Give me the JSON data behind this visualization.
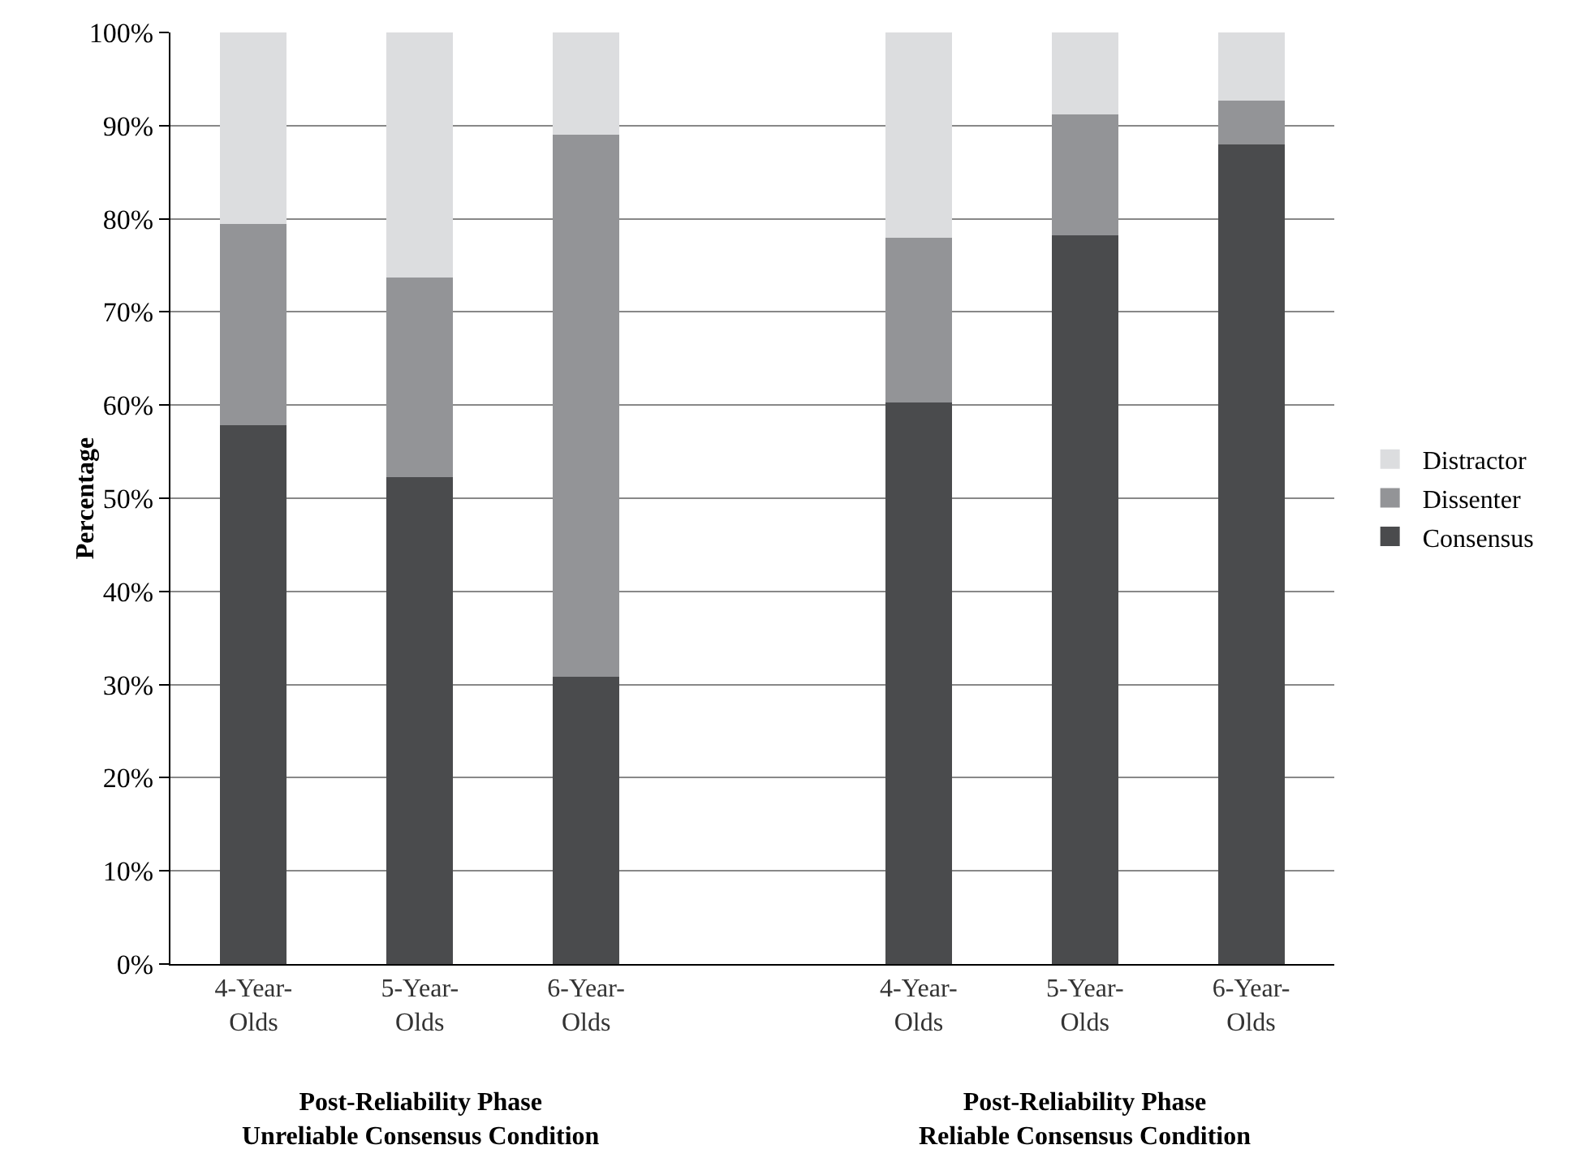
{
  "chart_data": {
    "type": "bar",
    "stacked": true,
    "ylabel": "Percentage",
    "categories": [
      "4-Year-Olds",
      "5-Year-Olds",
      "6-Year-Olds",
      null,
      "4-Year-Olds",
      "5-Year-Olds",
      "6-Year-Olds"
    ],
    "series": [
      {
        "name": "Consensus",
        "color": "#4a4b4d",
        "values": [
          57.8,
          52.3,
          30.8,
          null,
          60.3,
          78.2,
          88.0
        ]
      },
      {
        "name": "Dissenter",
        "color": "#939497",
        "values": [
          21.6,
          21.4,
          58.2,
          null,
          17.7,
          13.0,
          4.7
        ]
      },
      {
        "name": "Distractor",
        "color": "#dcdddf",
        "values": [
          20.6,
          26.3,
          11.0,
          null,
          22.0,
          8.8,
          7.3
        ]
      }
    ],
    "ylim": [
      0,
      100
    ],
    "yticks": [
      {
        "value": 0,
        "label": "0%"
      },
      {
        "value": 10,
        "label": "10%"
      },
      {
        "value": 20,
        "label": "20%"
      },
      {
        "value": 30,
        "label": "30%"
      },
      {
        "value": 40,
        "label": "40%"
      },
      {
        "value": 50,
        "label": "50%"
      },
      {
        "value": 60,
        "label": "60%"
      },
      {
        "value": 70,
        "label": "70%"
      },
      {
        "value": 80,
        "label": "80%"
      },
      {
        "value": 90,
        "label": "90%"
      },
      {
        "value": 100,
        "label": "100%"
      }
    ],
    "grid": "y",
    "legend": "right",
    "annotations": [
      "Post-Reliability Phase\nUnreliable Consensus Condition",
      "Post-Reliability Phase\nReliable Consensus Condition"
    ]
  }
}
